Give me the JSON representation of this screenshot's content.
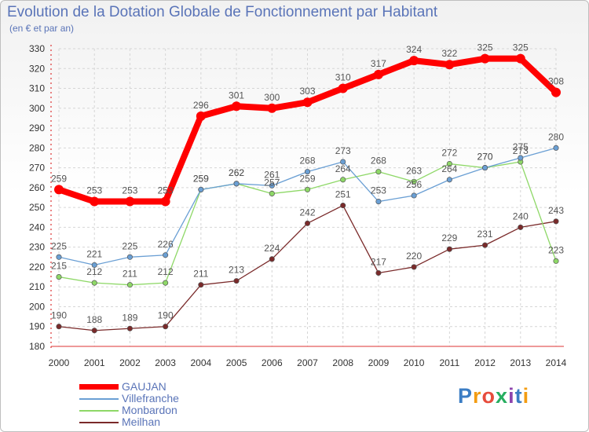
{
  "title": "Evolution de la Dotation Globale de Fonctionnement par Habitant",
  "subtitle": "(en € et par an)",
  "logo": {
    "text": [
      "P",
      "r",
      "o",
      "x",
      "i",
      "t",
      "i"
    ],
    "colors": [
      "#3b7dc4",
      "#f39c12",
      "#e74c3c",
      "#27ae60",
      "#8e44ad",
      "#3b7dc4",
      "#f39c12"
    ]
  },
  "chart_data": {
    "type": "line",
    "title": "Evolution de la Dotation Globale de Fonctionnement par Habitant",
    "subtitle": "(en € et par an)",
    "x": [
      "2000",
      "2001",
      "2002",
      "2003",
      "2004",
      "2005",
      "2006",
      "2007",
      "2008",
      "2009",
      "2010",
      "2011",
      "2012",
      "2013",
      "2014"
    ],
    "ylim": [
      180,
      330
    ],
    "yticks": [
      180,
      190,
      200,
      210,
      220,
      230,
      240,
      250,
      260,
      270,
      280,
      290,
      300,
      310,
      320,
      330
    ],
    "grid": true,
    "legend_position": "bottom-left",
    "series": [
      {
        "name": "GAUJAN",
        "color": "#ff0000",
        "values": [
          259,
          253,
          253,
          253,
          296,
          301,
          300,
          303,
          310,
          317,
          324,
          322,
          325,
          325,
          308
        ]
      },
      {
        "name": "Villefranche",
        "color": "#6a9fd4",
        "values": [
          225,
          221,
          225,
          226,
          259,
          262,
          261,
          268,
          273,
          253,
          256,
          264,
          270,
          275,
          280
        ]
      },
      {
        "name": "Monbardon",
        "color": "#8ed867",
        "values": [
          215,
          212,
          211,
          212,
          259,
          262,
          257,
          259,
          264,
          268,
          263,
          272,
          270,
          273,
          223
        ]
      },
      {
        "name": "Meilhan",
        "color": "#7a2a2a",
        "values": [
          190,
          188,
          189,
          190,
          211,
          213,
          224,
          242,
          251,
          217,
          220,
          229,
          231,
          240,
          243
        ]
      }
    ]
  }
}
